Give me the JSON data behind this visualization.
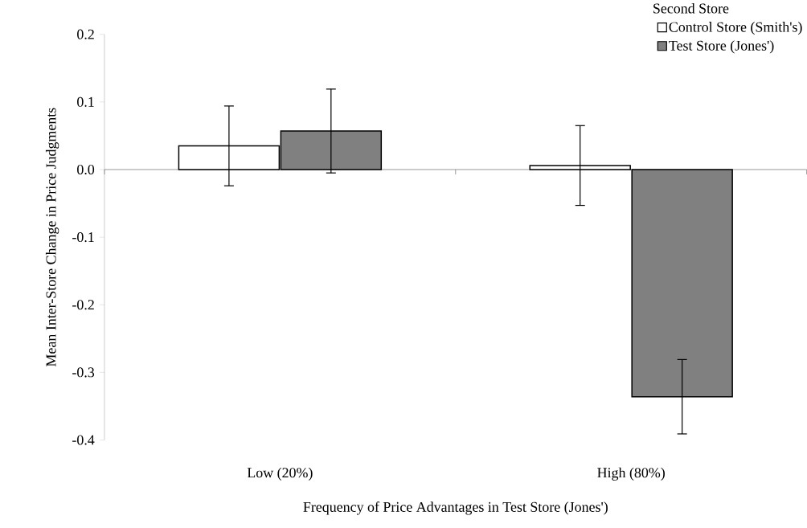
{
  "chart_data": {
    "type": "bar",
    "xlabel": "Frequency of Price Advantages in Test Store (Jones')",
    "ylabel": "Mean Inter-Store Change in Price Judgments",
    "legend_title": "Second Store",
    "legend": "top right",
    "categories": [
      "Low (20%)",
      "High (80%)"
    ],
    "ylim": [
      -0.4,
      0.2
    ],
    "yticks": [
      0.2,
      0.1,
      {
        "value": 0,
        "label": "0.0"
      },
      -0.1,
      -0.2,
      -0.3,
      -0.4
    ],
    "series": [
      {
        "name": "Control Store (Smith's)",
        "color": "#ffffff",
        "values": [
          0.035,
          0.006
        ],
        "errors": [
          0.059,
          0.059
        ]
      },
      {
        "name": "Test Store (Jones')",
        "color": "#808080",
        "values": [
          0.057,
          -0.336
        ],
        "errors": [
          0.062,
          0.055
        ]
      }
    ]
  }
}
